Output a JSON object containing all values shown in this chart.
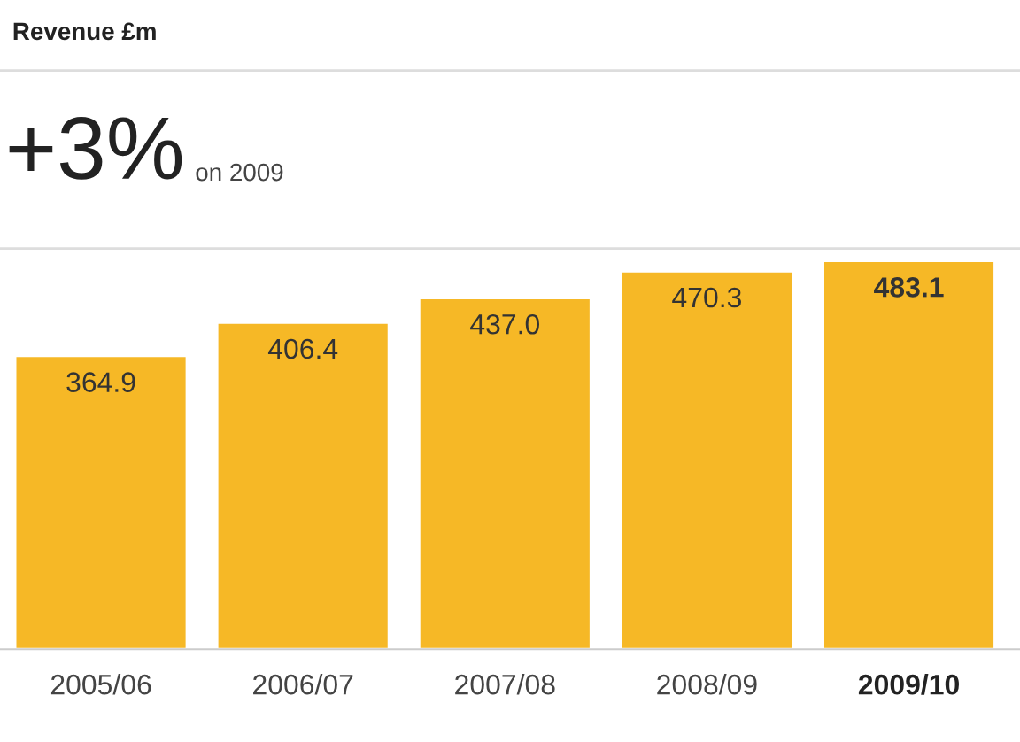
{
  "chart_data": {
    "type": "bar",
    "title": "Revenue £m",
    "subtitle": "+3%",
    "annotations": [
      "on 2009"
    ],
    "categories": [
      "2005/06",
      "2006/07",
      "2007/08",
      "2008/09",
      "2009/10"
    ],
    "values": [
      364.9,
      406.4,
      437.0,
      470.3,
      483.1
    ],
    "color": "#f6b826",
    "value_labels": [
      "364.9",
      "406.4",
      "437.0",
      "470.3",
      "483.1"
    ],
    "tick_labels": "x",
    "grid": false
  }
}
